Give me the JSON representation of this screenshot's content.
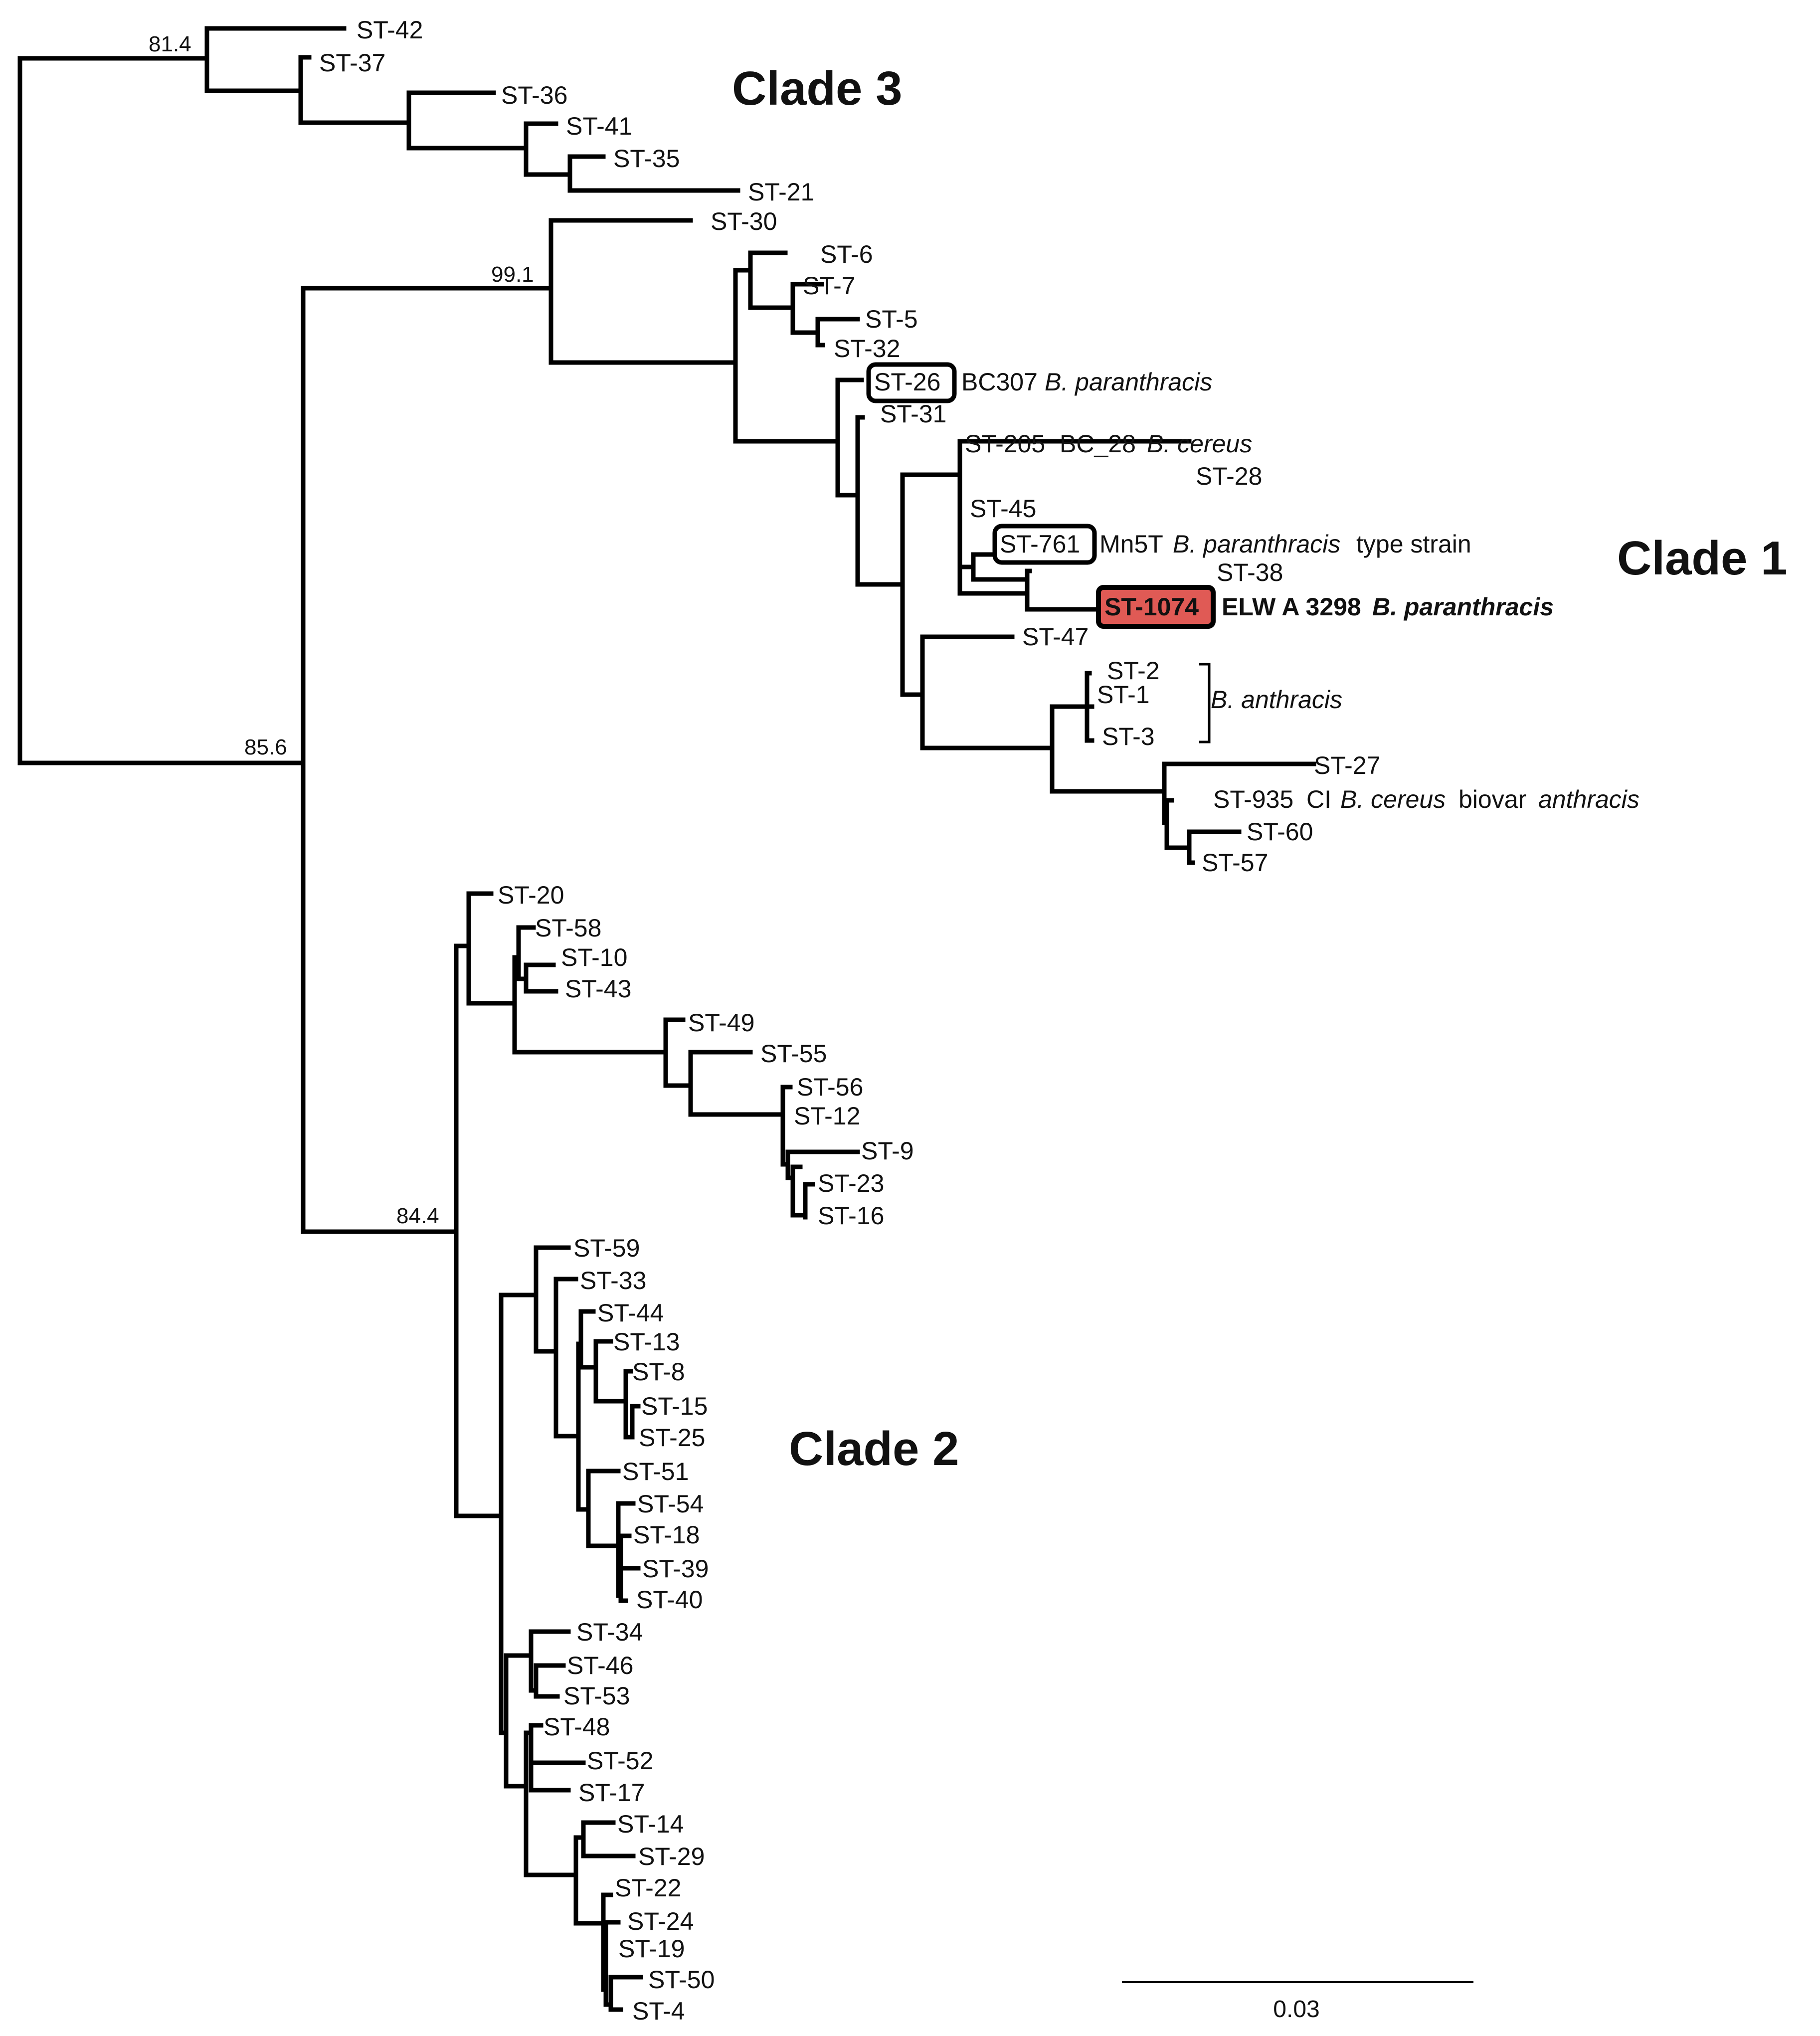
{
  "figure": {
    "clades": [
      {
        "label": "Clade 3"
      },
      {
        "label": "Clade 1"
      },
      {
        "label": "Clade 2"
      }
    ],
    "bootstrap_values": [
      "81.4",
      "99.1",
      "85.6",
      "84.4"
    ],
    "scale_bar": {
      "label": "0.03",
      "value": 0.03
    },
    "highlight_color": "#e05a55"
  },
  "taxa": {
    "st42": "ST-42",
    "st37": "ST-37",
    "st36": "ST-36",
    "st41": "ST-41",
    "st35": "ST-35",
    "st21": "ST-21",
    "st30": "ST-30",
    "st6": "ST-6",
    "st7": "ST-7",
    "st5": "ST-5",
    "st32": "ST-32",
    "st26": "ST-26",
    "st26_strain": "BC307",
    "st26_species": "B. paranthracis",
    "st31": "ST-31",
    "st205": "ST-205",
    "st205_strain": "BC_28",
    "st205_species": "B. cereus",
    "st28": "ST-28",
    "st45": "ST-45",
    "st761": "ST-761",
    "st761_strain": "Mn5T",
    "st761_species": "B. paranthracis",
    "st761_note": "type strain",
    "st38": "ST-38",
    "st1074": "ST-1074",
    "st1074_strain": "ELW A 3298",
    "st1074_species": "B. paranthracis",
    "st47": "ST-47",
    "st2": "ST-2",
    "st1": "ST-1",
    "st3": "ST-3",
    "anthracis_group": "B. anthracis",
    "st27": "ST-27",
    "st935": "ST-935",
    "st935_strain": "CI",
    "st935_species": "B. cereus",
    "st935_biovar": "biovar",
    "st935_anthracis": "anthracis",
    "st60": "ST-60",
    "st57": "ST-57",
    "st20": "ST-20",
    "st58": "ST-58",
    "st10": "ST-10",
    "st43": "ST-43",
    "st49": "ST-49",
    "st55": "ST-55",
    "st56": "ST-56",
    "st12": "ST-12",
    "st9": "ST-9",
    "st23": "ST-23",
    "st16": "ST-16",
    "st59": "ST-59",
    "st33": "ST-33",
    "st44": "ST-44",
    "st13": "ST-13",
    "st8": "ST-8",
    "st15": "ST-15",
    "st25": "ST-25",
    "st51": "ST-51",
    "st54": "ST-54",
    "st18": "ST-18",
    "st39": "ST-39",
    "st40": "ST-40",
    "st34": "ST-34",
    "st46": "ST-46",
    "st53": "ST-53",
    "st48": "ST-48",
    "st52": "ST-52",
    "st17": "ST-17",
    "st14": "ST-14",
    "st29": "ST-29",
    "st22": "ST-22",
    "st24": "ST-24",
    "st19": "ST-19",
    "st50": "ST-50",
    "st4": "ST-4"
  }
}
